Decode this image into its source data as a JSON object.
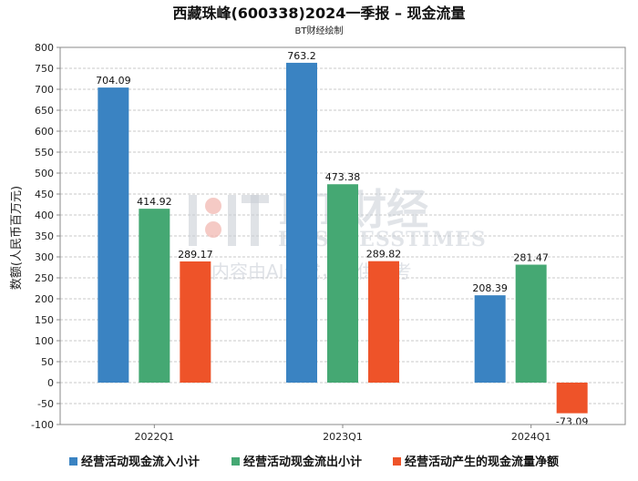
{
  "chart_data": {
    "type": "bar",
    "title": "西藏珠峰(600338)2024一季报 – 现金流量",
    "subtitle": "BT财经绘制",
    "ylabel": "数额(人民币百万元)",
    "xlabel": "",
    "categories": [
      "2022Q1",
      "2023Q1",
      "2024Q1"
    ],
    "ylim": [
      -100,
      800
    ],
    "ytick_step": 50,
    "grid": true,
    "legend_position": "bottom",
    "series": [
      {
        "name": "经营活动现金流入小计",
        "color": "#3a83c2",
        "values": [
          704.09,
          763.2,
          208.39
        ],
        "labels": [
          "704.09",
          "763.2",
          "208.39"
        ]
      },
      {
        "name": "经营活动现金流出小计",
        "color": "#45a873",
        "values": [
          414.92,
          473.38,
          281.47
        ],
        "labels": [
          "414.92",
          "473.38",
          "281.47"
        ]
      },
      {
        "name": "经营活动产生的现金流量净额",
        "color": "#ee5329",
        "values": [
          289.17,
          289.82,
          -73.09
        ],
        "labels": [
          "289.17",
          "289.82",
          "-73.09"
        ]
      }
    ]
  },
  "watermark": {
    "line1": "BT财经",
    "line2": "BUSINESSTIMES",
    "line3": "内容由AI生成，仅供参考"
  }
}
